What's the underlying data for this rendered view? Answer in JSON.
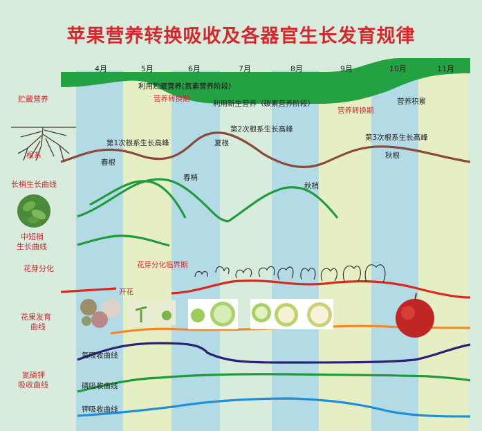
{
  "title": "苹果营养转换吸收及各器官生长发育规律",
  "months": [
    "4月",
    "5月",
    "6月",
    "7月",
    "8月",
    "9月",
    "10月",
    "11月"
  ],
  "row_labels": {
    "storage": "贮藏营养",
    "roots": "根系",
    "long_shoot": "长梢生长曲线",
    "short_shoot_line1": "中短梢",
    "short_shoot_line2": "生长曲线",
    "flower_bud": "花芽分化",
    "fruit_line1": "花果发育",
    "fruit_line2": "曲线",
    "npk_line1": "氮磷钾",
    "npk_line2": "吸收曲线"
  },
  "annotations": {
    "stored_nutrition_stage": "利用贮藏营养(氮素营养阶段)",
    "transition_1": "营养转换期",
    "new_nutrition_stage": "利用新生营养（碳素营养阶段）",
    "transition_2": "营养转换期",
    "accumulation": "营养积累",
    "root_peak_1": "第1次根系生长高峰",
    "spring_root": "春根",
    "root_peak_2": "第2次根系生长高峰",
    "summer_root": "夏根",
    "root_peak_3": "第3次根系生长高峰",
    "autumn_root": "秋根",
    "spring_shoot": "春梢",
    "autumn_shoot": "秋梢",
    "critical_period": "花芽分化临界期",
    "flowering": "开花",
    "n_absorption": "氮吸收曲线",
    "p_absorption": "磷吸收曲线",
    "k_absorption": "钾吸收曲线"
  },
  "colors": {
    "title": "#d4282d",
    "background_green": "#d7ecdc",
    "band_blue": "#b3dbe5",
    "band_yellow": "#e6efc4",
    "storage_band": "#23a243",
    "root_curve": "#8a4a3a",
    "shoot_curve": "#1f9a3c",
    "flower_curve": "#d62a20",
    "fruit_curve": "#ee8a2a",
    "n_curve": "#2a2078",
    "p_curve": "#1e9a3a",
    "k_curve": "#1f8fd6"
  },
  "icons": [
    "roots-icon",
    "leaf-photo-icon",
    "bud-sketch-icons",
    "flower-photo-icons",
    "fruit-section-icons",
    "apple-photo-icon"
  ]
}
